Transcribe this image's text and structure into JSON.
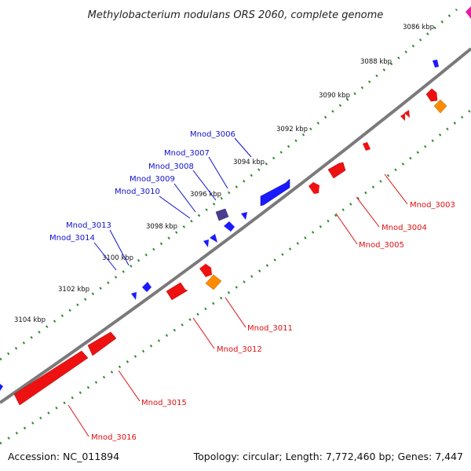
{
  "title": "Methylobacterium nodulans ORS 2060, complete genome",
  "footer": {
    "accession": "Accession: NC_011894",
    "stats": "Topology: circular; Length: 7,772,460 bp; Genes: 7,447"
  },
  "colors": {
    "backbone": "#7a7a7a",
    "ticks": "#2e8b2e",
    "forward_gene": "#1a1aff",
    "reverse_gene": "#ee1111",
    "orange_feature": "#ff8c00",
    "purple_feature": "#4a3f8f",
    "magenta_feature": "#e020a0",
    "forward_label": "#1010cc",
    "reverse_label": "#dd1111"
  },
  "kbp_labels": [
    "3086 kbp",
    "3088 kbp",
    "3090 kbp",
    "3092 kbp",
    "3094 kbp",
    "3096 kbp",
    "3098 kbp",
    "3100 kbp",
    "3102 kbp",
    "3104 kbp"
  ],
  "forward_genes": [
    "Mnod_3006",
    "Mnod_3007",
    "Mnod_3008",
    "Mnod_3009",
    "Mnod_3010",
    "Mnod_3013",
    "Mnod_3014"
  ],
  "reverse_genes": [
    "Mnod_3003",
    "Mnod_3004",
    "Mnod_3005",
    "Mnod_3011",
    "Mnod_3012",
    "Mnod_3015",
    "Mnod_3016"
  ]
}
